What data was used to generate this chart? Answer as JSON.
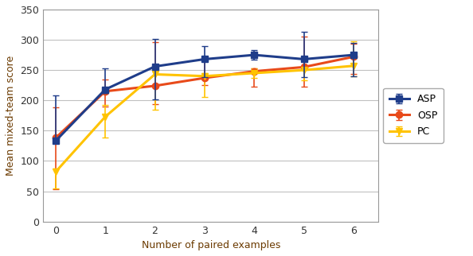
{
  "x": [
    0,
    1,
    2,
    3,
    4,
    5,
    6
  ],
  "ASP_y": [
    133,
    218,
    256,
    268,
    275,
    268,
    275
  ],
  "ASP_err_lo": [
    0,
    6,
    55,
    30,
    8,
    30,
    35
  ],
  "ASP_err_hi": [
    75,
    35,
    45,
    22,
    8,
    45,
    20
  ],
  "OSP_y": [
    138,
    215,
    224,
    237,
    248,
    255,
    272
  ],
  "OSP_err_lo": [
    85,
    25,
    30,
    12,
    25,
    32,
    28
  ],
  "OSP_err_hi": [
    50,
    20,
    72,
    28,
    5,
    50,
    22
  ],
  "PC_y": [
    82,
    173,
    243,
    240,
    245,
    250,
    257
  ],
  "PC_err_lo": [
    27,
    35,
    58,
    35,
    8,
    17,
    17
  ],
  "PC_err_hi": [
    5,
    20,
    5,
    5,
    8,
    5,
    40
  ],
  "ASP_color": "#1F3D8A",
  "OSP_color": "#E84A1A",
  "PC_color": "#FFC300",
  "xlabel": "Number of paired examples",
  "ylabel": "Mean mixed-team score",
  "ylim": [
    0,
    350
  ],
  "xlim": [
    -0.25,
    6.5
  ],
  "yticks": [
    0,
    50,
    100,
    150,
    200,
    250,
    300,
    350
  ],
  "xticks": [
    0,
    1,
    2,
    3,
    4,
    5,
    6
  ],
  "grid_color": "#C0C0C0",
  "legend_labels": [
    "ASP",
    "OSP",
    "PC"
  ],
  "marker_size": 6,
  "linewidth": 2.2,
  "capsize": 3,
  "elinewidth": 1.2
}
